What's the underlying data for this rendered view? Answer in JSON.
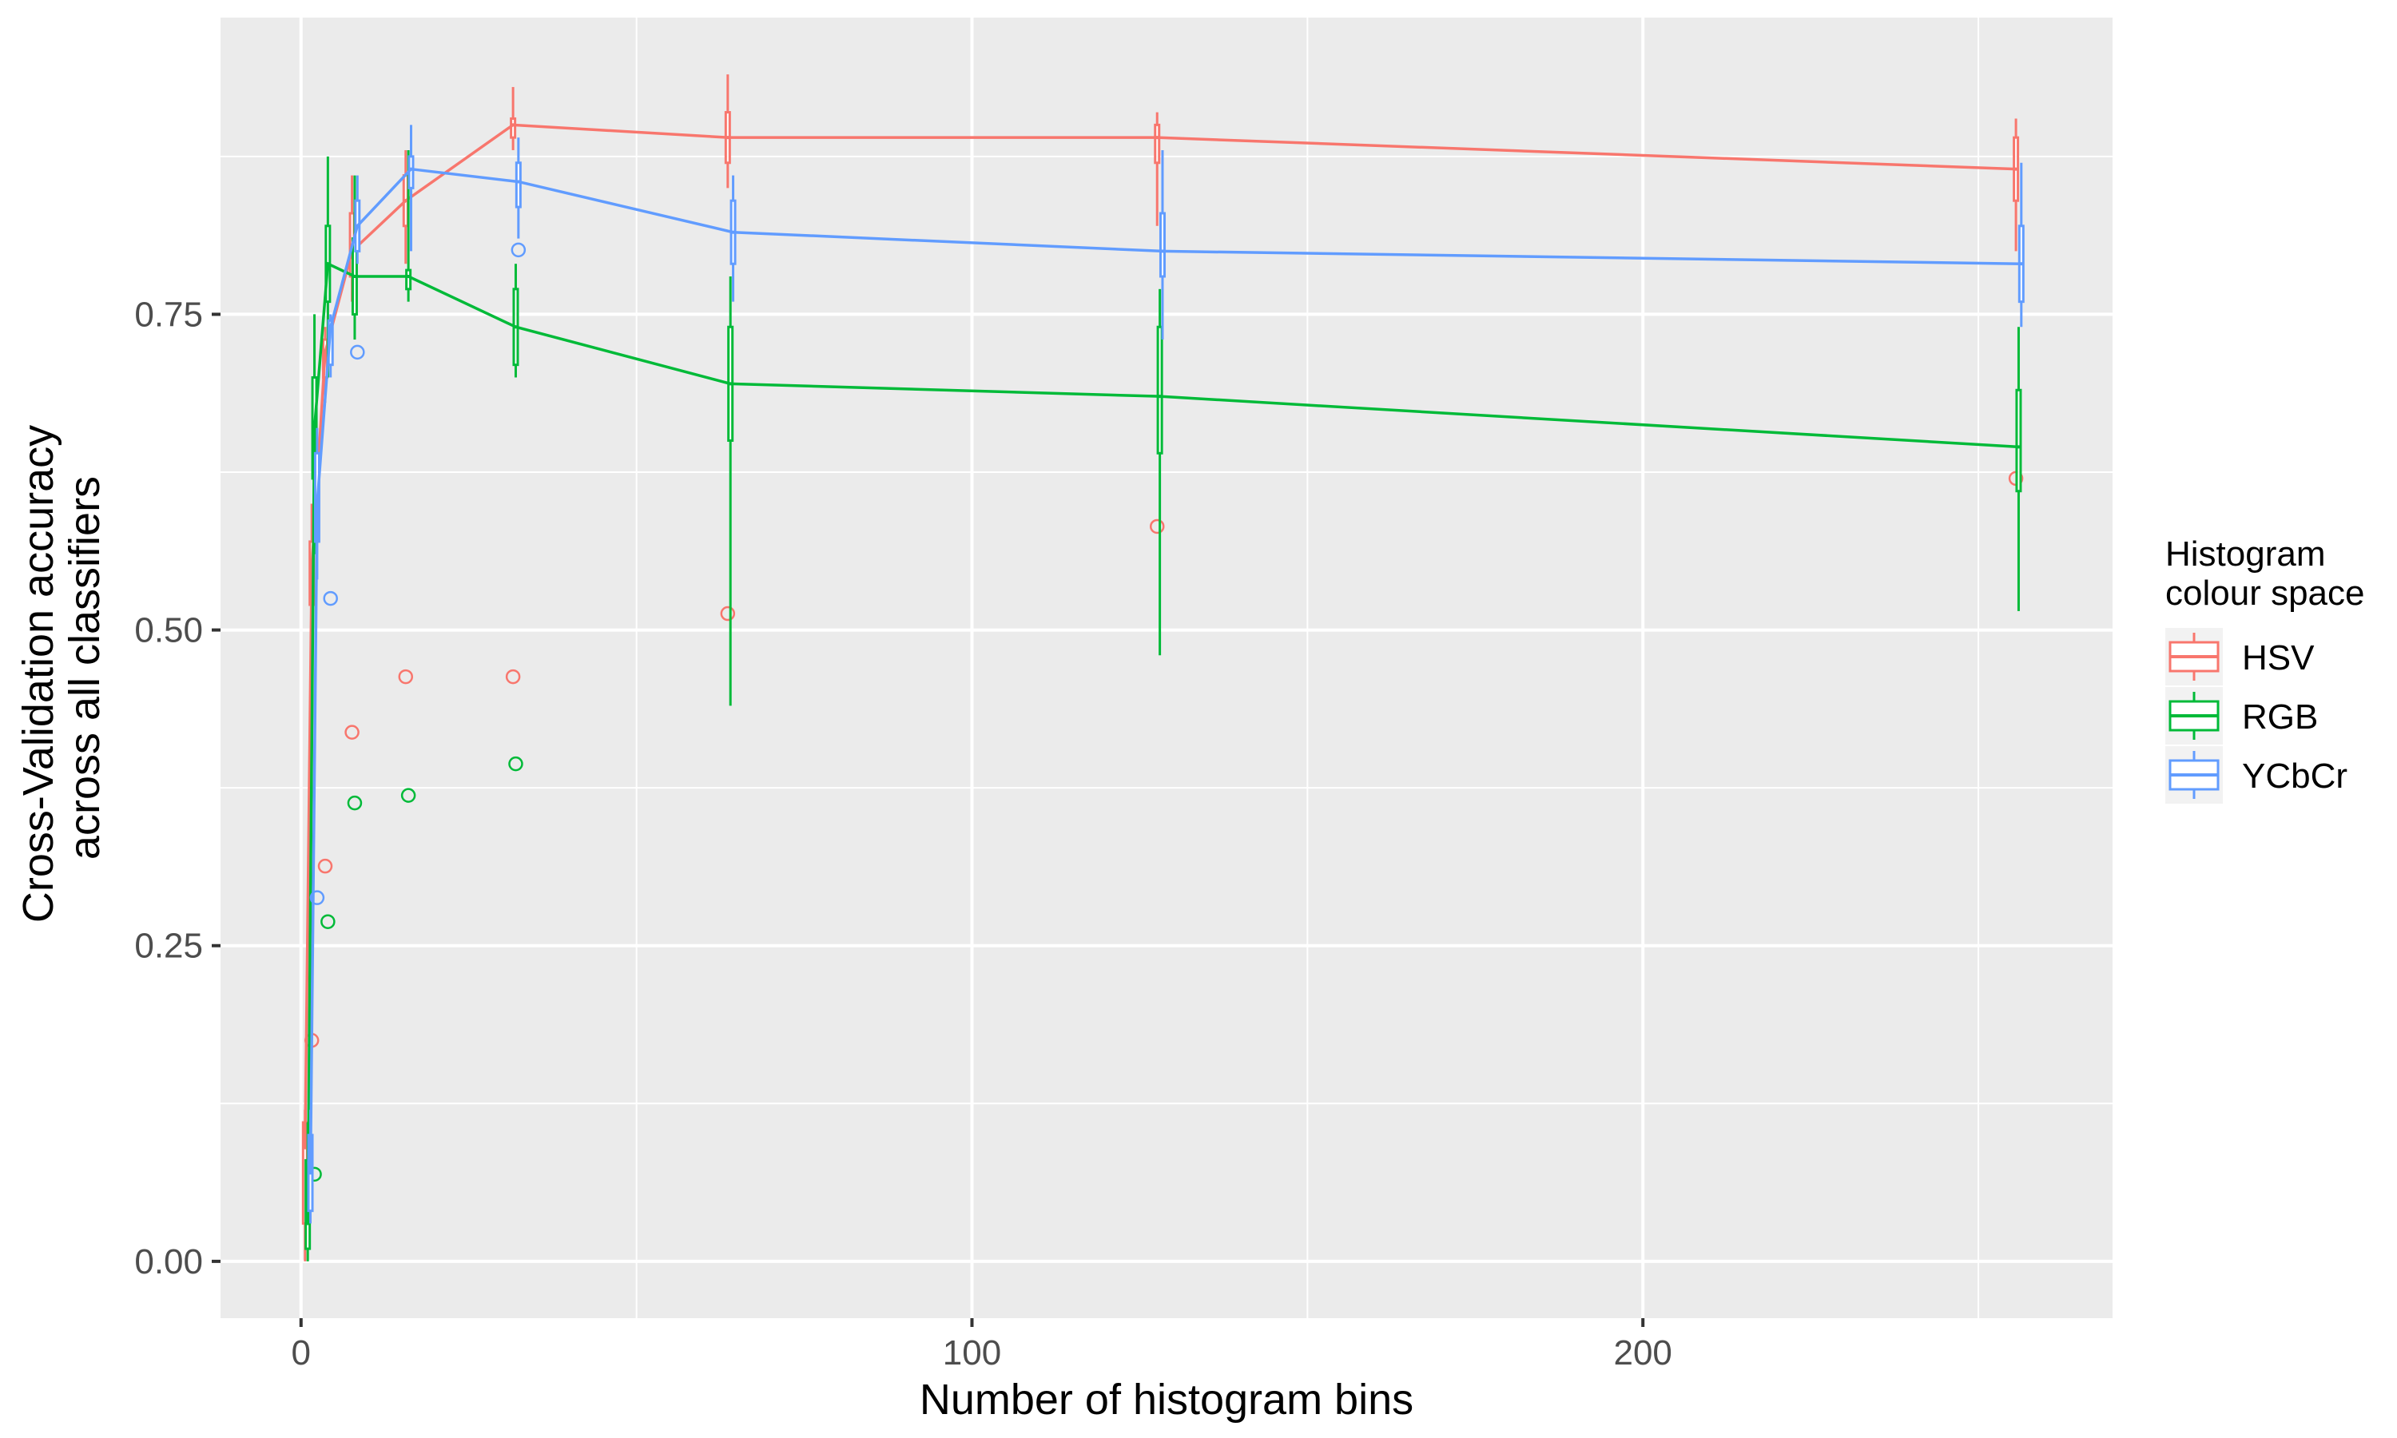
{
  "chart_data": {
    "type": "boxplot-line",
    "title": "",
    "xlabel": "Number of histogram bins",
    "ylabel": [
      "Cross-Validation accuracy",
      "across all classifiers"
    ],
    "xlim": [
      -12,
      270
    ],
    "ylim": [
      -0.045,
      0.985
    ],
    "x_ticks": [
      0,
      100,
      200
    ],
    "x_tick_labels": [
      "0",
      "100",
      "200"
    ],
    "y_ticks": [
      0,
      0.25,
      0.5,
      0.75
    ],
    "y_tick_labels": [
      "0.00",
      "0.25",
      "0.50",
      "0.75"
    ],
    "grid": true,
    "legend": {
      "title": [
        "Histogram",
        "colour space"
      ],
      "position": "right"
    },
    "x": [
      1,
      2,
      4,
      8,
      16,
      32,
      64,
      128,
      256
    ],
    "series": [
      {
        "name": "HSV",
        "color": "#F8766D",
        "dodge": -0.4,
        "median": [
          0.09,
          0.55,
          0.72,
          0.8,
          0.84,
          0.9,
          0.89,
          0.89,
          0.865
        ],
        "boxes": [
          {
            "q1": 0.03,
            "q3": 0.11,
            "lo": 0.0,
            "hi": 0.12
          },
          {
            "q1": 0.52,
            "q3": 0.57,
            "lo": 0.5,
            "hi": 0.6
          },
          {
            "q1": 0.7,
            "q3": 0.73,
            "lo": 0.68,
            "hi": 0.74
          },
          {
            "q1": 0.78,
            "q3": 0.83,
            "lo": 0.76,
            "hi": 0.86
          },
          {
            "q1": 0.82,
            "q3": 0.86,
            "lo": 0.79,
            "hi": 0.88
          },
          {
            "q1": 0.89,
            "q3": 0.905,
            "lo": 0.88,
            "hi": 0.93
          },
          {
            "q1": 0.87,
            "q3": 0.91,
            "lo": 0.85,
            "hi": 0.94
          },
          {
            "q1": 0.87,
            "q3": 0.9,
            "lo": 0.82,
            "hi": 0.91
          },
          {
            "q1": 0.84,
            "q3": 0.89,
            "lo": 0.8,
            "hi": 0.905
          }
        ],
        "outliers": [
          [
            2,
            0.175
          ],
          [
            4,
            0.313
          ],
          [
            8,
            0.419
          ],
          [
            16,
            0.463
          ],
          [
            32,
            0.463
          ],
          [
            64,
            0.513
          ],
          [
            128,
            0.582
          ],
          [
            256,
            0.62
          ]
        ]
      },
      {
        "name": "RGB",
        "color": "#00BA38",
        "dodge": 0,
        "median": [
          0.03,
          0.66,
          0.79,
          0.78,
          0.78,
          0.74,
          0.695,
          0.685,
          0.645
        ],
        "boxes": [
          {
            "q1": 0.01,
            "q3": 0.08,
            "lo": 0.0,
            "hi": 0.11
          },
          {
            "q1": 0.62,
            "q3": 0.7,
            "lo": 0.56,
            "hi": 0.75
          },
          {
            "q1": 0.76,
            "q3": 0.82,
            "lo": 0.7,
            "hi": 0.875
          },
          {
            "q1": 0.75,
            "q3": 0.81,
            "lo": 0.73,
            "hi": 0.86
          },
          {
            "q1": 0.77,
            "q3": 0.785,
            "lo": 0.76,
            "hi": 0.88
          },
          {
            "q1": 0.71,
            "q3": 0.77,
            "lo": 0.7,
            "hi": 0.79
          },
          {
            "q1": 0.65,
            "q3": 0.74,
            "lo": 0.44,
            "hi": 0.78
          },
          {
            "q1": 0.64,
            "q3": 0.74,
            "lo": 0.48,
            "hi": 0.77
          },
          {
            "q1": 0.61,
            "q3": 0.69,
            "lo": 0.515,
            "hi": 0.74
          }
        ],
        "outliers": [
          [
            2,
            0.069
          ],
          [
            4,
            0.269
          ],
          [
            8,
            0.363
          ],
          [
            16,
            0.369
          ],
          [
            32,
            0.394
          ]
        ]
      },
      {
        "name": "YCbCr",
        "color": "#619CFF",
        "dodge": 0.4,
        "median": [
          0.07,
          0.6,
          0.74,
          0.82,
          0.865,
          0.855,
          0.815,
          0.8,
          0.79
        ],
        "boxes": [
          {
            "q1": 0.04,
            "q3": 0.1,
            "lo": 0.03,
            "hi": 0.12
          },
          {
            "q1": 0.57,
            "q3": 0.64,
            "lo": 0.54,
            "hi": 0.66
          },
          {
            "q1": 0.71,
            "q3": 0.745,
            "lo": 0.7,
            "hi": 0.75
          },
          {
            "q1": 0.8,
            "q3": 0.84,
            "lo": 0.79,
            "hi": 0.86
          },
          {
            "q1": 0.85,
            "q3": 0.875,
            "lo": 0.8,
            "hi": 0.9
          },
          {
            "q1": 0.835,
            "q3": 0.87,
            "lo": 0.81,
            "hi": 0.89
          },
          {
            "q1": 0.79,
            "q3": 0.84,
            "lo": 0.76,
            "hi": 0.86
          },
          {
            "q1": 0.78,
            "q3": 0.83,
            "lo": 0.73,
            "hi": 0.88
          },
          {
            "q1": 0.76,
            "q3": 0.82,
            "lo": 0.74,
            "hi": 0.87
          }
        ],
        "outliers": [
          [
            2,
            0.288
          ],
          [
            4,
            0.525
          ],
          [
            8,
            0.72
          ],
          [
            32,
            0.801
          ]
        ]
      }
    ]
  }
}
